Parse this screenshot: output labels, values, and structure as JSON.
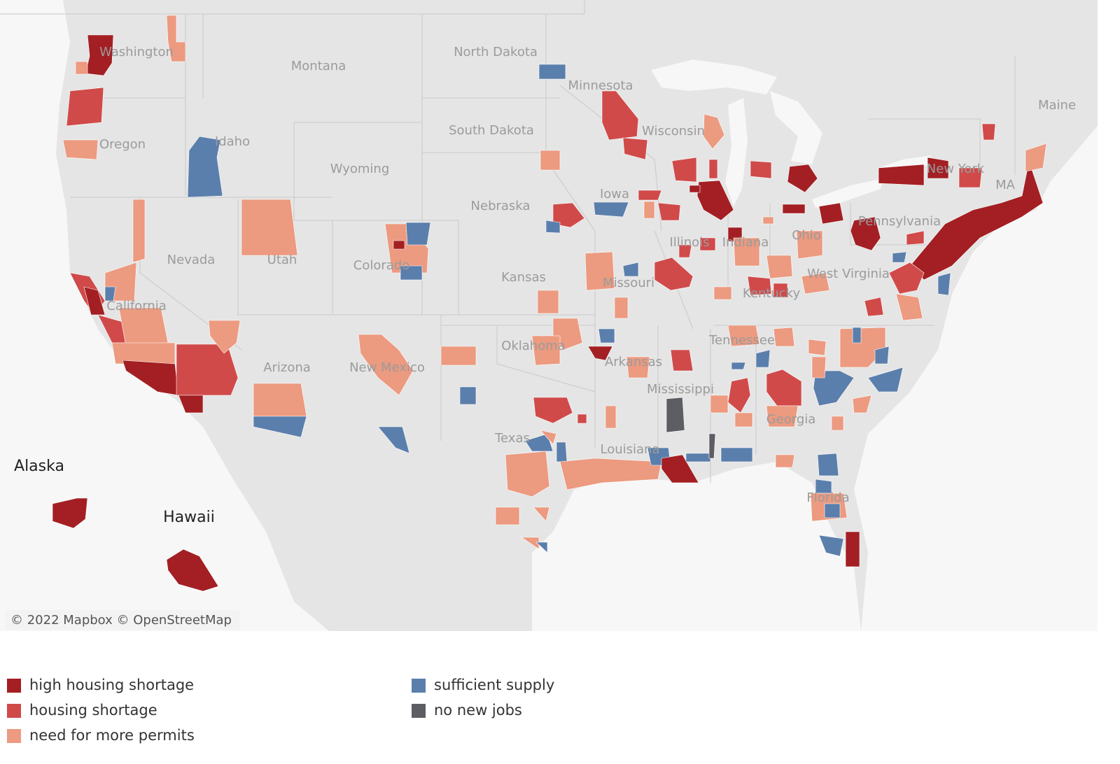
{
  "map": {
    "labels": [
      "Washington",
      "Montana",
      "North Dakota",
      "Minnesota",
      "Wisconsin",
      "Oregon",
      "Idaho",
      "South Dakota",
      "Wyoming",
      "Iowa",
      "Nebraska",
      "Nevada",
      "Utah",
      "Colorado",
      "Kansas",
      "Missouri",
      "Illinois",
      "Indiana",
      "Ohio",
      "Pennsylvania",
      "New York",
      "Maine",
      "West Virginia",
      "Kentucky",
      "California",
      "Oklahoma",
      "Tennessee",
      "Arkansas",
      "Arizona",
      "New Mexico",
      "Mississippi",
      "Georgia",
      "Texas",
      "Louisiana",
      "Florida",
      "MA"
    ],
    "insets": [
      "Alaska",
      "Hawaii"
    ],
    "attribution": "© 2022 Mapbox  © OpenStreetMap"
  },
  "legend": {
    "items": [
      {
        "label": "high housing shortage",
        "color": "#a31f23"
      },
      {
        "label": "housing shortage",
        "color": "#d04a4a"
      },
      {
        "label": "need for more permits",
        "color": "#ec9a80"
      },
      {
        "label": "sufficient supply",
        "color": "#5b7fac"
      },
      {
        "label": "no new jobs",
        "color": "#5d5e63"
      }
    ]
  }
}
